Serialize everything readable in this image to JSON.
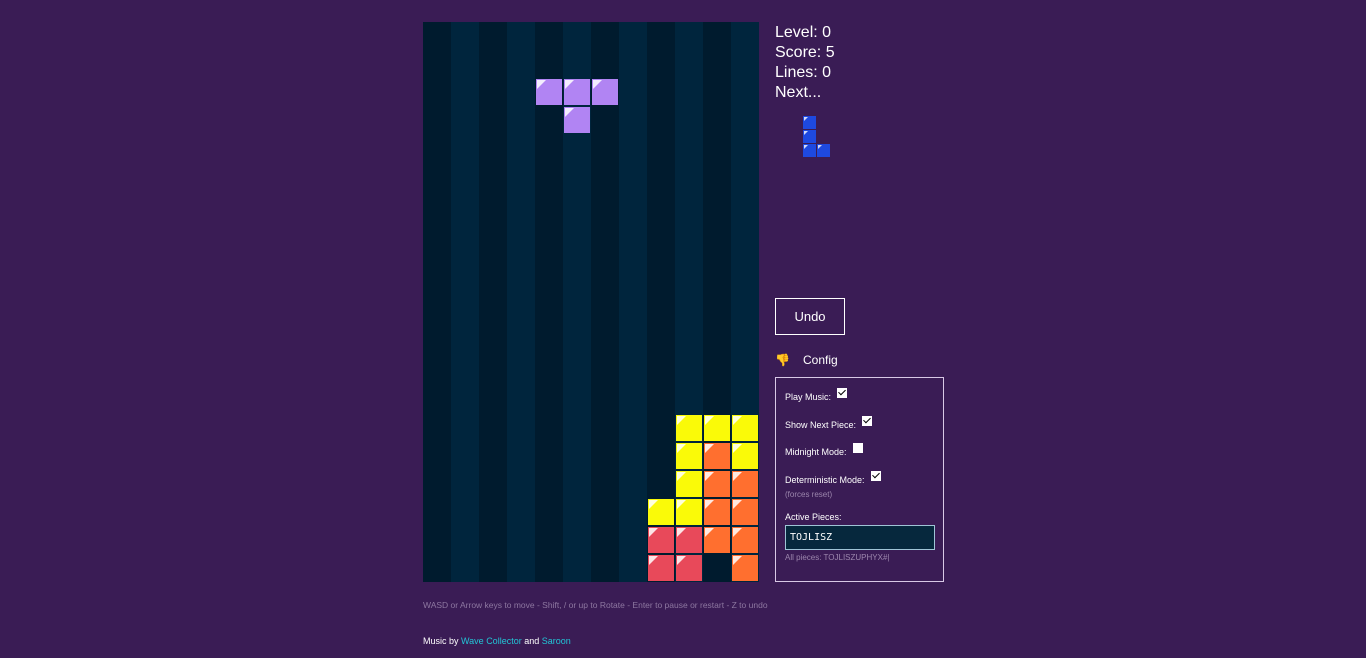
{
  "stats": {
    "level": "Level: 0",
    "score": "Score: 5",
    "lines": "Lines: 0",
    "next": "Next..."
  },
  "colors": {
    "T": "#b184f3",
    "J": "#1e49e0",
    "L": "#ff6f2f",
    "O": "#fafa08",
    "Z": "#e8495a",
    "col_dark": "#001b2e",
    "col_light": "#00253d"
  },
  "board": {
    "columns": 12,
    "rows": 20,
    "active_piece": {
      "type": "T",
      "cells": [
        [
          4,
          2
        ],
        [
          5,
          2
        ],
        [
          6,
          2
        ],
        [
          5,
          3
        ]
      ]
    },
    "settled": [
      {
        "c": 9,
        "r": 14,
        "t": "O"
      },
      {
        "c": 10,
        "r": 14,
        "t": "O"
      },
      {
        "c": 11,
        "r": 14,
        "t": "O"
      },
      {
        "c": 9,
        "r": 15,
        "t": "O"
      },
      {
        "c": 10,
        "r": 15,
        "t": "L"
      },
      {
        "c": 11,
        "r": 15,
        "t": "O"
      },
      {
        "c": 9,
        "r": 16,
        "t": "O"
      },
      {
        "c": 10,
        "r": 16,
        "t": "L"
      },
      {
        "c": 11,
        "r": 16,
        "t": "L"
      },
      {
        "c": 8,
        "r": 17,
        "t": "O"
      },
      {
        "c": 9,
        "r": 17,
        "t": "O"
      },
      {
        "c": 10,
        "r": 17,
        "t": "L"
      },
      {
        "c": 11,
        "r": 17,
        "t": "L"
      },
      {
        "c": 8,
        "r": 18,
        "t": "Z"
      },
      {
        "c": 9,
        "r": 18,
        "t": "Z"
      },
      {
        "c": 10,
        "r": 18,
        "t": "L"
      },
      {
        "c": 11,
        "r": 18,
        "t": "L"
      },
      {
        "c": 8,
        "r": 19,
        "t": "Z"
      },
      {
        "c": 9,
        "r": 19,
        "t": "Z"
      },
      {
        "c": 11,
        "r": 19,
        "t": "L"
      }
    ]
  },
  "next_piece": {
    "type": "J",
    "cells": [
      [
        2,
        0
      ],
      [
        2,
        1
      ],
      [
        2,
        2
      ],
      [
        3,
        2
      ]
    ]
  },
  "controls": {
    "undo_label": "Undo",
    "config_label": "Config",
    "config_icon": "pointing-down-hand-icon"
  },
  "config": {
    "play_music_label": "Play Music:",
    "play_music": true,
    "show_next_label": "Show Next Piece:",
    "show_next": true,
    "midnight_label": "Midnight Mode:",
    "midnight": false,
    "deterministic_label": "Deterministic Mode:",
    "deterministic": true,
    "deterministic_note": "(forces reset)",
    "active_pieces_label": "Active Pieces:",
    "active_pieces_value": "TOJLISZ",
    "all_pieces_note": "All pieces: TOJLISZUPHYX#|"
  },
  "footer": {
    "help": "WASD or Arrow keys to move - Shift, / or up to Rotate - Enter to pause or restart - Z to undo",
    "music_prefix": "Music by ",
    "artist1": "Wave Collector",
    "joiner": " and ",
    "artist2": "Saroon"
  }
}
